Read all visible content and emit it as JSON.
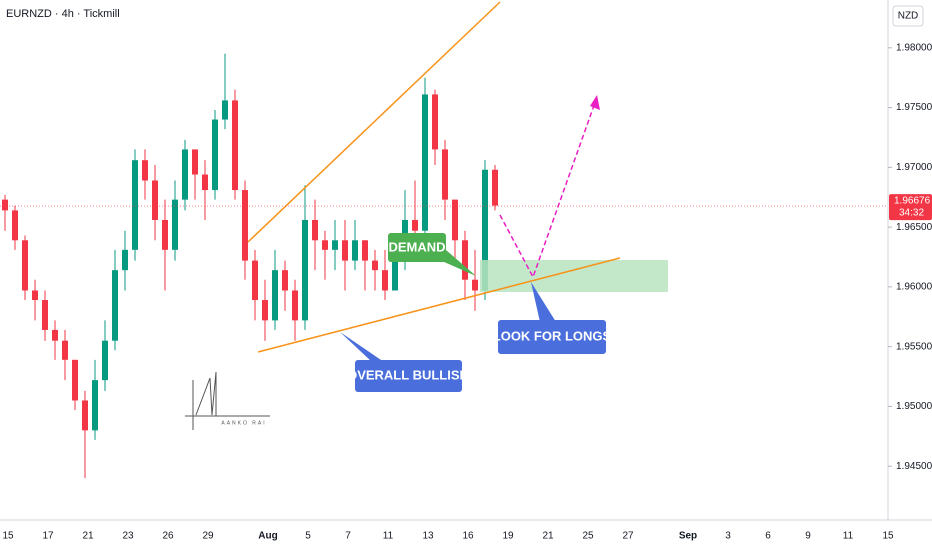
{
  "chart_data": {
    "type": "candlestick",
    "title": "EURNZD · 4h · Tickmill",
    "currency_label": "NZD",
    "watermark": "AANKO RAI",
    "up_color": "#089981",
    "down_color": "#f23645",
    "categories": [
      "15",
      null,
      null,
      null,
      "17",
      null,
      null,
      null,
      "21",
      null,
      null,
      null,
      "23",
      null,
      null,
      null,
      "26",
      null,
      null,
      null,
      "29",
      null,
      null,
      null,
      null,
      null,
      "Aug",
      null,
      null,
      null,
      "5",
      null,
      null,
      null,
      "7",
      null,
      null,
      null,
      "11",
      null,
      null,
      null,
      "13",
      null,
      null,
      null,
      "16",
      null,
      null,
      null,
      "19",
      null,
      null,
      null,
      "21",
      null,
      null,
      null,
      "25",
      null,
      null,
      null,
      "27",
      null,
      null,
      null,
      null,
      null,
      "Sep",
      null,
      null,
      null,
      "3",
      null,
      null,
      null,
      "6",
      null,
      null,
      null,
      "9",
      null,
      null,
      null,
      "11",
      null,
      null,
      null,
      "15"
    ],
    "open": [
      1.9673,
      1.9664,
      1.9639,
      1.9597,
      1.9589,
      1.9564,
      1.9555,
      1.9539,
      1.9505,
      1.948,
      1.9522,
      1.9555,
      1.9614,
      1.9631,
      1.9706,
      1.9689,
      1.9656,
      1.9631,
      1.9673,
      1.9715,
      1.9694,
      1.9681,
      1.974,
      1.9756,
      1.9681,
      1.9622,
      1.9589,
      1.9572,
      1.9614,
      1.9597,
      1.9572,
      1.9656,
      1.9639,
      1.9631,
      1.9639,
      1.9622,
      1.9639,
      1.9622,
      1.9614,
      1.9597,
      1.9622,
      1.9656,
      1.9647,
      1.9761,
      1.9715,
      1.9673,
      1.9639,
      1.9606,
      1.9597,
      1.9698,
      null,
      null,
      null,
      null,
      null,
      null,
      null,
      null,
      null,
      null,
      null,
      null,
      null,
      null,
      null,
      null,
      null,
      null,
      null,
      null,
      null,
      null,
      null,
      null,
      null,
      null,
      null,
      null,
      null,
      null,
      null,
      null,
      null,
      null,
      null,
      null,
      null,
      null,
      null
    ],
    "high": [
      1.9677,
      1.9668,
      1.9643,
      1.9606,
      1.9597,
      1.9572,
      1.9564,
      1.9539,
      1.9513,
      1.9539,
      1.9572,
      1.9631,
      1.9647,
      1.9715,
      1.9715,
      1.9702,
      1.9673,
      1.9689,
      1.9723,
      1.9715,
      1.9706,
      1.9748,
      1.9795,
      1.9765,
      1.9689,
      1.9631,
      1.9606,
      1.9631,
      1.9622,
      1.9606,
      1.9685,
      1.9673,
      1.9647,
      1.9656,
      1.9656,
      1.9656,
      1.9639,
      1.9631,
      1.9631,
      1.9639,
      1.9681,
      1.9689,
      1.9775,
      1.9765,
      1.9723,
      1.9673,
      1.9647,
      1.9631,
      1.9706,
      1.9702,
      null,
      null,
      null,
      null,
      null,
      null,
      null,
      null,
      null,
      null,
      null,
      null,
      null,
      null,
      null,
      null,
      null,
      null,
      null,
      null,
      null,
      null,
      null,
      null,
      null,
      null,
      null,
      null,
      null,
      null,
      null,
      null,
      null,
      null,
      null,
      null,
      null,
      null,
      null
    ],
    "low": [
      1.9647,
      1.9631,
      1.9589,
      1.9572,
      1.9555,
      1.9539,
      1.9522,
      1.9497,
      1.944,
      1.9472,
      1.9513,
      1.9547,
      1.9597,
      1.9622,
      1.9673,
      1.9639,
      1.9597,
      1.9622,
      1.9664,
      1.9673,
      1.9656,
      1.9673,
      1.9732,
      1.9673,
      1.9606,
      1.9572,
      1.9555,
      1.9564,
      1.958,
      1.9555,
      1.9564,
      1.9614,
      1.9606,
      1.9614,
      1.9597,
      1.9614,
      1.9597,
      1.9597,
      1.9589,
      1.9597,
      1.9614,
      1.9631,
      1.9639,
      1.9702,
      1.9656,
      1.9622,
      1.9589,
      1.958,
      1.9589,
      1.9664,
      null,
      null,
      null,
      null,
      null,
      null,
      null,
      null,
      null,
      null,
      null,
      null,
      null,
      null,
      null,
      null,
      null,
      null,
      null,
      null,
      null,
      null,
      null,
      null,
      null,
      null,
      null,
      null,
      null,
      null,
      null,
      null,
      null,
      null,
      null,
      null,
      null,
      null,
      null
    ],
    "close": [
      1.9664,
      1.9639,
      1.9597,
      1.9589,
      1.9564,
      1.9555,
      1.9539,
      1.9505,
      1.948,
      1.9522,
      1.9555,
      1.9614,
      1.9631,
      1.9706,
      1.9689,
      1.9656,
      1.9631,
      1.9673,
      1.9715,
      1.9694,
      1.9681,
      1.974,
      1.9756,
      1.9681,
      1.9622,
      1.9589,
      1.9572,
      1.9614,
      1.9597,
      1.9572,
      1.9656,
      1.9639,
      1.9631,
      1.9639,
      1.9622,
      1.9639,
      1.9622,
      1.9614,
      1.9597,
      1.9622,
      1.9656,
      1.9647,
      1.9761,
      1.9715,
      1.9673,
      1.9639,
      1.9606,
      1.9597,
      1.9698,
      1.9668,
      null,
      null,
      null,
      null,
      null,
      null,
      null,
      null,
      null,
      null,
      null,
      null,
      null,
      null,
      null,
      null,
      null,
      null,
      null,
      null,
      null,
      null,
      null,
      null,
      null,
      null,
      null,
      null,
      null,
      null,
      null,
      null,
      null,
      null,
      null,
      null,
      null,
      null,
      null
    ],
    "ylim": [
      1.9405,
      1.984
    ],
    "yticks": [
      {
        "value": 1.945,
        "label": "1.94500"
      },
      {
        "value": 1.95,
        "label": "1.95000"
      },
      {
        "value": 1.955,
        "label": "1.95500"
      },
      {
        "value": 1.96,
        "label": "1.96000"
      },
      {
        "value": 1.965,
        "label": "1.96500"
      },
      {
        "value": 1.97,
        "label": "1.97000"
      },
      {
        "value": 1.975,
        "label": "1.97500"
      },
      {
        "value": 1.98,
        "label": "1.98000"
      }
    ],
    "current_price": 1.96676,
    "countdown": "34:32",
    "annotations": [
      "DEMAND",
      "OVERALL BULLISH",
      "LOOK FOR LONGS"
    ]
  }
}
